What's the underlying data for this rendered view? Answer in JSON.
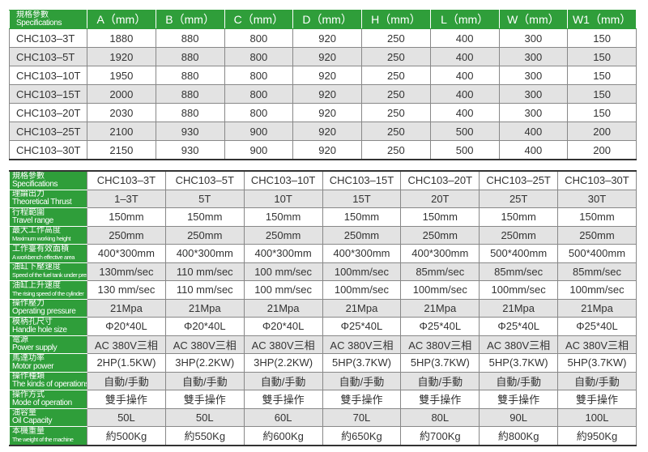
{
  "dimensions": {
    "header": {
      "label_zh": "規格參數",
      "label_en": "Specifications",
      "columns": [
        "A（mm）",
        "B（mm）",
        "C（mm）",
        "D（mm）",
        "H（mm）",
        "L（mm）",
        "W（mm）",
        "W1（mm）"
      ]
    },
    "rows": [
      [
        "CHC103–3T",
        "1880",
        "880",
        "800",
        "920",
        "250",
        "400",
        "300",
        "150"
      ],
      [
        "CHC103–5T",
        "1920",
        "880",
        "800",
        "920",
        "250",
        "400",
        "300",
        "150"
      ],
      [
        "CHC103–10T",
        "1950",
        "880",
        "800",
        "920",
        "250",
        "400",
        "300",
        "150"
      ],
      [
        "CHC103–15T",
        "2000",
        "880",
        "800",
        "920",
        "250",
        "400",
        "300",
        "150"
      ],
      [
        "CHC103–20T",
        "2030",
        "880",
        "800",
        "920",
        "250",
        "400",
        "300",
        "150"
      ],
      [
        "CHC103–25T",
        "2100",
        "930",
        "900",
        "920",
        "250",
        "500",
        "400",
        "200"
      ],
      [
        "CHC103–30T",
        "2150",
        "930",
        "900",
        "920",
        "250",
        "500",
        "400",
        "200"
      ]
    ]
  },
  "specs": {
    "rows": [
      {
        "zh": "規格參數",
        "en": "Specifications",
        "values": [
          "CHC103–3T",
          "CHC103–5T",
          "CHC103–10T",
          "CHC103–15T",
          "CHC103–20T",
          "CHC103–25T",
          "CHC103–30T"
        ]
      },
      {
        "zh": "理論出力",
        "en": "Theoretical Thrust",
        "values": [
          "1–3T",
          "5T",
          "10T",
          "15T",
          "20T",
          "25T",
          "30T"
        ]
      },
      {
        "zh": "行程範圍",
        "en": "Travel range",
        "values": [
          "150mm",
          "150mm",
          "150mm",
          "150mm",
          "150mm",
          "150mm",
          "150mm"
        ]
      },
      {
        "zh": "最大工作高度",
        "en": "Maximum working height",
        "small": true,
        "values": [
          "250mm",
          "250mm",
          "250mm",
          "250mm",
          "250mm",
          "250mm",
          "250mm"
        ]
      },
      {
        "zh": "工作臺有效面積",
        "en": "A workbench effective area",
        "small": true,
        "values": [
          "400*300mm",
          "400*300mm",
          "400*300mm",
          "400*300mm",
          "400*300mm",
          "500*400mm",
          "500*400mm"
        ]
      },
      {
        "zh": "油缸下壓速度",
        "en": "Speed of the fuel tank under pressure",
        "small": true,
        "values": [
          "130mm/sec",
          "110 mm/sec",
          "100 mm/sec",
          "100mm/sec",
          "85mm/sec",
          "85mm/sec",
          "85mm/sec"
        ]
      },
      {
        "zh": "油缸上升速度",
        "en": "The rising speed of the cylinder",
        "small": true,
        "values": [
          "130 mm/sec",
          "110 mm/sec",
          "100 mm/sec",
          "100mm/sec",
          "100mm/sec",
          "100mm/sec",
          "100mm/sec"
        ]
      },
      {
        "zh": "操作壓力",
        "en": "Operating pressure",
        "values": [
          "21Mpa",
          "21Mpa",
          "21Mpa",
          "21Mpa",
          "21Mpa",
          "21Mpa",
          "21Mpa"
        ]
      },
      {
        "zh": "模柄孔尺寸",
        "en": "Handle hole size",
        "values": [
          "Φ20*40L",
          "Φ20*40L",
          "Φ20*40L",
          "Φ25*40L",
          "Φ25*40L",
          "Φ25*40L",
          "Φ25*40L"
        ]
      },
      {
        "zh": "電源",
        "en": "Power supply",
        "values": [
          "AC 380V三相",
          "AC 380V三相",
          "AC 380V三相",
          "AC 380V三相",
          "AC 380V三相",
          "AC 380V三相",
          "AC 380V三相"
        ]
      },
      {
        "zh": "馬達功率",
        "en": "Motor power",
        "values": [
          "2HP(1.5KW)",
          "3HP(2.2KW)",
          "3HP(2.2KW)",
          "5HP(3.7KW)",
          "5HP(3.7KW)",
          "5HP(3.7KW)",
          "5HP(3.7KW)"
        ]
      },
      {
        "zh": "操作種類",
        "en": "The kinds of operations",
        "values": [
          "自動/手動",
          "自動/手動",
          "自動/手動",
          "自動/手動",
          "自動/手動",
          "自動/手動",
          "自動/手動"
        ]
      },
      {
        "zh": "操作方式",
        "en": "Mode of operation",
        "values": [
          "雙手操作",
          "雙手操作",
          "雙手操作",
          "雙手操作",
          "雙手操作",
          "雙手操作",
          "雙手操作"
        ]
      },
      {
        "zh": "油容量",
        "en": "Oil Capacity",
        "values": [
          "50L",
          "50L",
          "60L",
          "70L",
          "80L",
          "90L",
          "100L"
        ]
      },
      {
        "zh": "本機重量",
        "en": "The weight of the machine",
        "small": true,
        "values": [
          "約500Kg",
          "約550Kg",
          "約600Kg",
          "約650Kg",
          "約700Kg",
          "約800Kg",
          "約950Kg"
        ]
      }
    ]
  },
  "colors": {
    "header_green": "#2f9e3a",
    "stripe_gray": "#e3e3e3"
  }
}
